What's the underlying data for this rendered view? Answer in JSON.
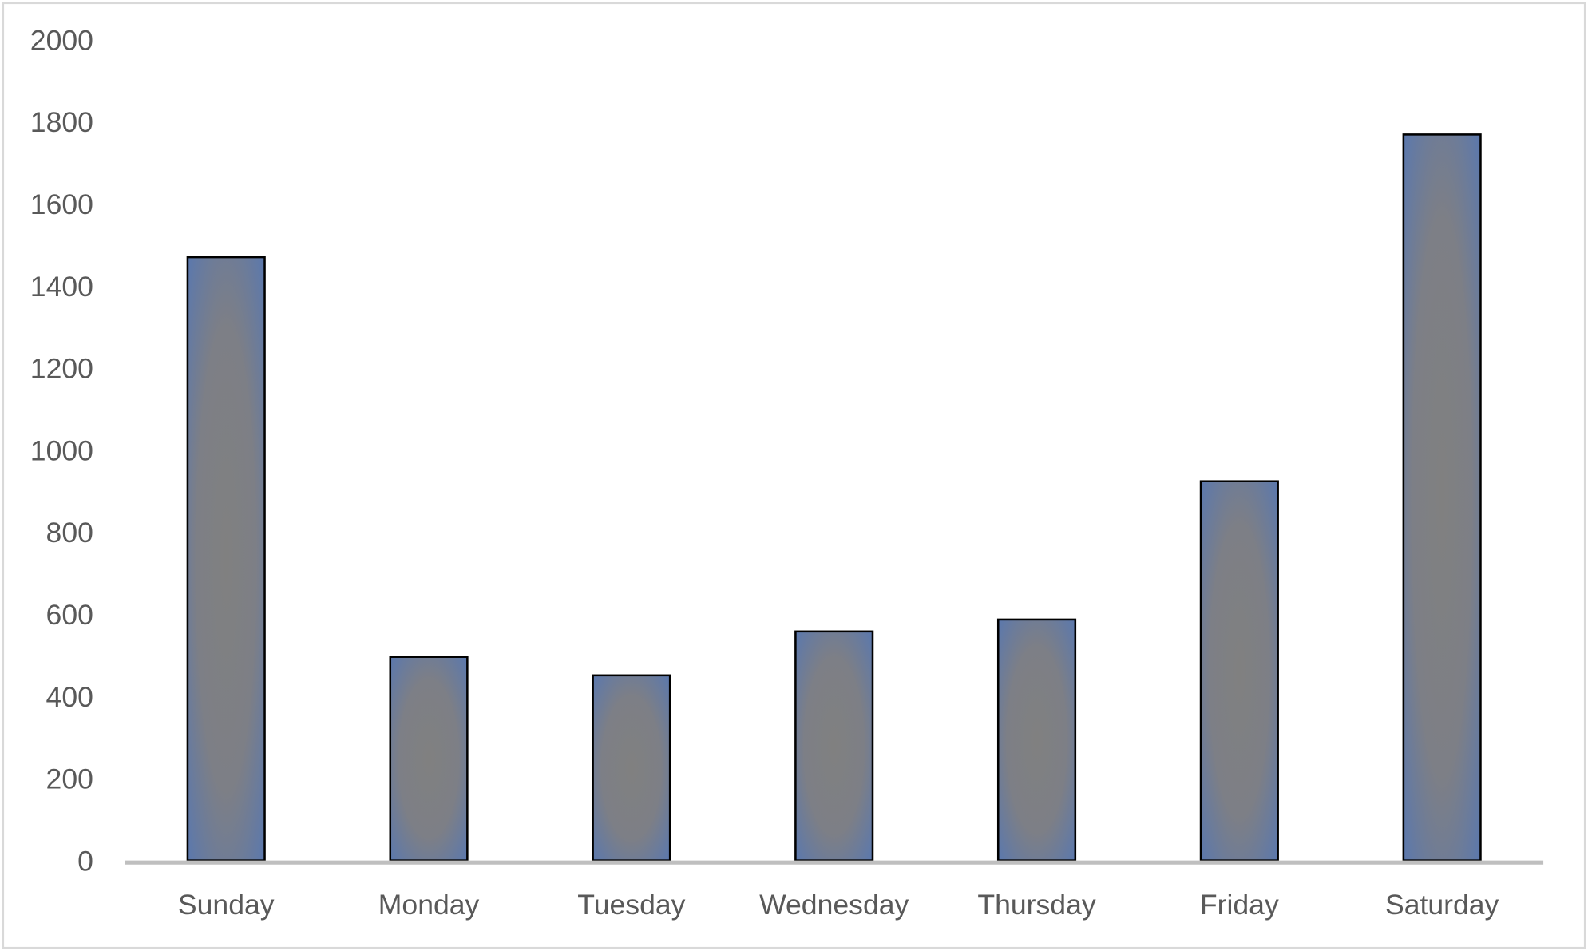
{
  "chart_data": {
    "type": "bar",
    "title": "",
    "xlabel": "",
    "ylabel": "",
    "categories": [
      "Sunday",
      "Monday",
      "Tuesday",
      "Wednesday",
      "Thursday",
      "Friday",
      "Saturday"
    ],
    "values": [
      1470,
      496,
      451,
      558,
      587,
      924,
      1769
    ],
    "ylim": [
      0,
      2000
    ],
    "yticks": [
      "0",
      "200",
      "400",
      "600",
      "800",
      "1000",
      "1200",
      "1400",
      "1600",
      "1800",
      "2000"
    ],
    "grid": false,
    "legend": "none",
    "colors": {
      "bar_center": "#808080",
      "bar_edge": "#5b78ad",
      "bar_outline": "#000000",
      "axis": "#bfbfbf",
      "text": "#595959"
    }
  }
}
